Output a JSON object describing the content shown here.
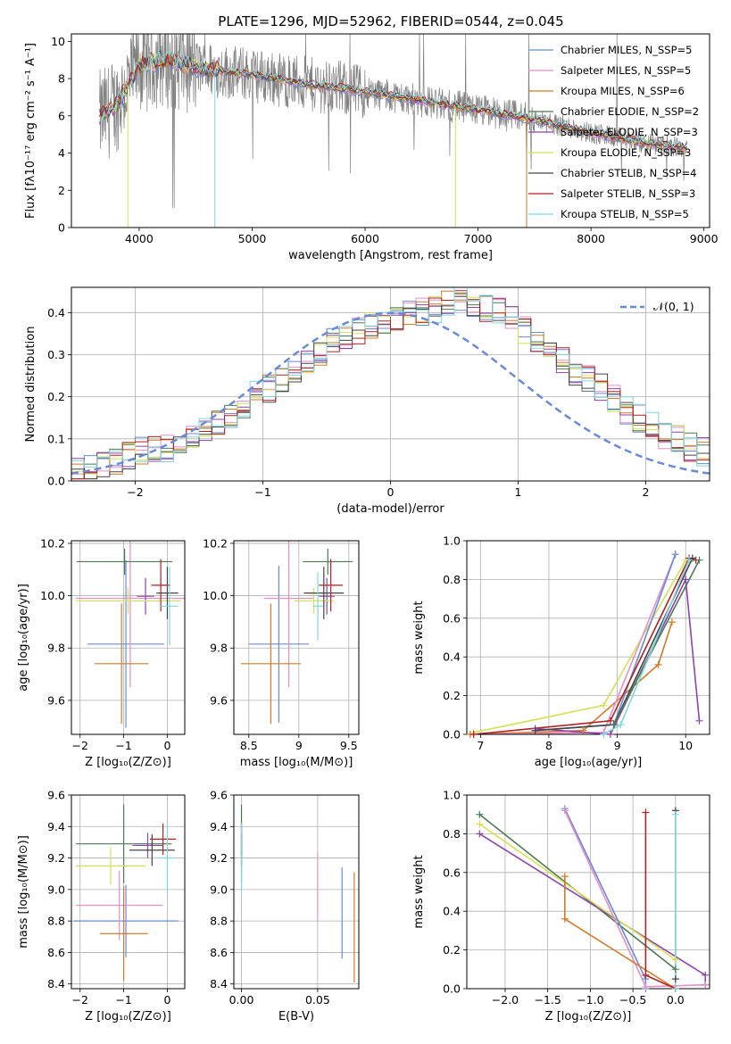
{
  "figure_title": "PLATE=1296, MJD=52962, FIBERID=0544, z=0.045",
  "chart_data": [
    {
      "id": "spectrum",
      "type": "line",
      "xlabel": "wavelength [Angstrom, rest frame]",
      "ylabel": "Flux [fλ10⁻¹⁷ erg cm⁻² s⁻¹ A⁻¹]",
      "xlim": [
        3400,
        9050
      ],
      "ylim": [
        0,
        10.4
      ],
      "xticks": [
        4000,
        5000,
        6000,
        7000,
        8000,
        9000
      ],
      "yticks": [
        0,
        2,
        4,
        6,
        8,
        10
      ],
      "grid": false,
      "legend_position": "top-right",
      "data_color": "#808080",
      "continuum": {
        "x": [
          3650,
          3800,
          4000,
          4200,
          4500,
          5000,
          5500,
          6000,
          6500,
          7000,
          7500,
          8000,
          8500,
          8850
        ],
        "y": [
          5.9,
          6.6,
          8.7,
          9.0,
          8.6,
          8.2,
          7.7,
          7.3,
          6.8,
          6.3,
          5.8,
          5.1,
          4.5,
          4.3
        ]
      },
      "series": [
        {
          "name": "Chabrier MILES, N_SSP=5",
          "color": "#6a8ad8"
        },
        {
          "name": "Salpeter MILES, N_SSP=5",
          "color": "#e48fc8"
        },
        {
          "name": "Kroupa MILES, N_SSP=6",
          "color": "#d57a2a"
        },
        {
          "name": "Chabrier ELODIE, N_SSP=2",
          "color": "#4b7a55"
        },
        {
          "name": "Salpeter ELODIE, N_SSP=3",
          "color": "#8e44ad"
        },
        {
          "name": "Kroupa ELODIE, N_SSP=3",
          "color": "#d4e157"
        },
        {
          "name": "Chabrier STELIB, N_SSP=4",
          "color": "#444444"
        },
        {
          "name": "Salpeter STELIB, N_SSP=3",
          "color": "#b22222"
        },
        {
          "name": "Kroupa STELIB, N_SSP=5",
          "color": "#7fd8e0"
        }
      ]
    },
    {
      "id": "residuals",
      "type": "bar",
      "xlabel": "(data-model)/error",
      "ylabel": "Normed distribution",
      "xlim": [
        -2.5,
        2.5
      ],
      "ylim": [
        0,
        0.46
      ],
      "xticks": [
        -2,
        -1,
        0,
        1,
        2
      ],
      "yticks": [
        0.0,
        0.1,
        0.2,
        0.3,
        0.4
      ],
      "grid": true,
      "legend": "𝒩(0, 1)",
      "legend_position": "top-right",
      "normal_color": "#6a8ad8",
      "bin_edges_start": -2.5,
      "bin_width": 0.1,
      "base_histogram": [
        0.02,
        0.03,
        0.04,
        0.05,
        0.06,
        0.07,
        0.08,
        0.08,
        0.09,
        0.11,
        0.12,
        0.14,
        0.16,
        0.18,
        0.21,
        0.22,
        0.24,
        0.26,
        0.28,
        0.3,
        0.33,
        0.34,
        0.36,
        0.37,
        0.38,
        0.39,
        0.4,
        0.4,
        0.41,
        0.42,
        0.43,
        0.42,
        0.41,
        0.4,
        0.38,
        0.36,
        0.34,
        0.31,
        0.29,
        0.26,
        0.24,
        0.22,
        0.2,
        0.17,
        0.15,
        0.13,
        0.11,
        0.1,
        0.08,
        0.07
      ]
    },
    {
      "id": "age-vs-Z",
      "type": "scatter",
      "xlabel": "Z [log₁₀(Z/Z⊙)]",
      "ylabel": "age  [log₁₀(age/yr)]",
      "xlim": [
        -2.2,
        0.4
      ],
      "ylim": [
        9.47,
        10.21
      ],
      "xticks": [
        -2,
        -1,
        0
      ],
      "yticks": [
        9.6,
        9.8,
        10.0,
        10.2
      ],
      "grid": true,
      "points": [
        {
          "x": -0.95,
          "y": 9.815,
          "xerr": 0.88,
          "yerr": 0.32,
          "c": "#6a8ad8"
        },
        {
          "x": -0.85,
          "y": 9.99,
          "xerr": 1.25,
          "yerr": 0.34,
          "c": "#e48fc8"
        },
        {
          "x": -1.05,
          "y": 9.74,
          "xerr": 0.62,
          "yerr": 0.23,
          "c": "#d57a2a"
        },
        {
          "x": -0.98,
          "y": 10.13,
          "xerr": 1.1,
          "yerr": 0.05,
          "c": "#4b7a55"
        },
        {
          "x": -0.5,
          "y": 9.998,
          "xerr": 0.2,
          "yerr": 0.07,
          "c": "#8e44ad"
        },
        {
          "x": -0.9,
          "y": 9.98,
          "xerr": 1.2,
          "yerr": 0.05,
          "c": "#d4e157"
        },
        {
          "x": 0.0,
          "y": 10.01,
          "xerr": 0.25,
          "yerr": 0.1,
          "c": "#444444"
        },
        {
          "x": -0.15,
          "y": 10.04,
          "xerr": 0.22,
          "yerr": 0.1,
          "c": "#b22222"
        },
        {
          "x": 0.05,
          "y": 9.96,
          "xerr": 0.2,
          "yerr": 0.15,
          "c": "#7fd8e0"
        }
      ]
    },
    {
      "id": "age-vs-mass",
      "type": "scatter",
      "xlabel": "mass [log₁₀(M/M⊙)]",
      "ylabel": "",
      "xlim": [
        8.35,
        9.6
      ],
      "ylim": [
        9.47,
        10.21
      ],
      "xticks": [
        8.5,
        9.0,
        9.5
      ],
      "yticks": [
        9.6,
        9.8,
        10.0,
        10.2
      ],
      "grid": true,
      "points": [
        {
          "x": 8.8,
          "y": 9.815,
          "xerr": 0.3,
          "yerr": 0.3,
          "c": "#6a8ad8"
        },
        {
          "x": 8.9,
          "y": 9.99,
          "xerr": 0.25,
          "yerr": 0.34,
          "c": "#e48fc8"
        },
        {
          "x": 8.72,
          "y": 9.74,
          "xerr": 0.3,
          "yerr": 0.23,
          "c": "#d57a2a"
        },
        {
          "x": 9.29,
          "y": 10.13,
          "xerr": 0.25,
          "yerr": 0.05,
          "c": "#4b7a55"
        },
        {
          "x": 9.28,
          "y": 9.998,
          "xerr": 0.08,
          "yerr": 0.07,
          "c": "#8e44ad"
        },
        {
          "x": 9.15,
          "y": 9.98,
          "xerr": 0.2,
          "yerr": 0.05,
          "c": "#d4e157"
        },
        {
          "x": 9.25,
          "y": 10.01,
          "xerr": 0.2,
          "yerr": 0.1,
          "c": "#444444"
        },
        {
          "x": 9.32,
          "y": 10.04,
          "xerr": 0.12,
          "yerr": 0.1,
          "c": "#b22222"
        },
        {
          "x": 9.19,
          "y": 9.96,
          "xerr": 0.05,
          "yerr": 0.13,
          "c": "#7fd8e0"
        }
      ]
    },
    {
      "id": "mass-weight-vs-age",
      "type": "line",
      "xlabel": "age  [log₁₀(age/yr)]",
      "ylabel": "mass weight",
      "xlim": [
        6.8,
        10.35
      ],
      "ylim": [
        0,
        1.0
      ],
      "xticks": [
        7,
        8,
        9,
        10
      ],
      "yticks": [
        0.0,
        0.2,
        0.4,
        0.6,
        0.8,
        1.0
      ],
      "grid": true,
      "series": [
        {
          "c": "#d4e157",
          "x": [
            6.9,
            8.8,
            10.0
          ],
          "y": [
            0.01,
            0.15,
            0.9
          ]
        },
        {
          "c": "#d57a2a",
          "x": [
            6.85,
            8.5,
            9.6,
            9.8
          ],
          "y": [
            0.0,
            0.02,
            0.36,
            0.58
          ]
        },
        {
          "c": "#e48fc8",
          "x": [
            6.9,
            8.8,
            9.85
          ],
          "y": [
            0.0,
            0.01,
            0.93
          ]
        },
        {
          "c": "#6a8ad8",
          "x": [
            7.8,
            8.95,
            9.85
          ],
          "y": [
            0.02,
            0.05,
            0.93
          ]
        },
        {
          "c": "#8e44ad",
          "x": [
            7.8,
            8.9,
            10.0,
            10.2
          ],
          "y": [
            0.03,
            0.0,
            0.8,
            0.07
          ]
        },
        {
          "c": "#b22222",
          "x": [
            6.9,
            8.9,
            10.05,
            10.15
          ],
          "y": [
            0.0,
            0.07,
            0.91,
            0.9
          ]
        },
        {
          "c": "#444444",
          "x": [
            7.8,
            8.95,
            10.1
          ],
          "y": [
            0.02,
            0.05,
            0.91
          ]
        },
        {
          "c": "#4b7a55",
          "x": [
            8.95,
            10.2
          ],
          "y": [
            0.05,
            0.9
          ]
        },
        {
          "c": "#7fd8e0",
          "x": [
            8.8,
            9.05,
            10.05
          ],
          "y": [
            0.0,
            0.05,
            0.9
          ]
        }
      ]
    },
    {
      "id": "mass-vs-Z",
      "type": "scatter",
      "xlabel": "Z [log₁₀(Z/Z⊙)]",
      "ylabel": "mass [log₁₀(M/M⊙)]",
      "xlim": [
        -2.2,
        0.4
      ],
      "ylim": [
        8.37,
        9.6
      ],
      "xticks": [
        -2,
        -1,
        0
      ],
      "yticks": [
        8.4,
        8.6,
        8.8,
        9.0,
        9.2,
        9.4,
        9.6
      ],
      "grid": true,
      "points": [
        {
          "x": -0.95,
          "y": 8.8,
          "xerr": 1.2,
          "yerr": 0.23,
          "c": "#6a8ad8"
        },
        {
          "x": -1.1,
          "y": 8.9,
          "xerr": 1.0,
          "yerr": 0.22,
          "c": "#e48fc8"
        },
        {
          "x": -1.0,
          "y": 8.72,
          "xerr": 0.55,
          "yerr": 0.3,
          "c": "#d57a2a"
        },
        {
          "x": -1.0,
          "y": 9.29,
          "xerr": 1.1,
          "yerr": 0.25,
          "c": "#4b7a55"
        },
        {
          "x": -0.45,
          "y": 9.28,
          "xerr": 0.35,
          "yerr": 0.08,
          "c": "#8e44ad"
        },
        {
          "x": -1.3,
          "y": 9.15,
          "xerr": 0.8,
          "yerr": 0.12,
          "c": "#d4e157"
        },
        {
          "x": -0.35,
          "y": 9.25,
          "xerr": 0.52,
          "yerr": 0.1,
          "c": "#444444"
        },
        {
          "x": -0.1,
          "y": 9.32,
          "xerr": 0.3,
          "yerr": 0.1,
          "c": "#b22222"
        },
        {
          "x": 0.0,
          "y": 9.2,
          "xerr": 0.2,
          "yerr": 0.22,
          "c": "#7fd8e0"
        }
      ]
    },
    {
      "id": "mass-vs-EBV",
      "type": "scatter",
      "xlabel": "E(B-V)",
      "ylabel": "",
      "xlim": [
        -0.005,
        0.077
      ],
      "ylim": [
        8.37,
        9.6
      ],
      "xticks": [
        0.0,
        0.05
      ],
      "xticklabels": [
        "0.00",
        "0.05"
      ],
      "yticks": [
        8.4,
        8.6,
        8.8,
        9.0,
        9.2,
        9.4,
        9.6
      ],
      "grid": true,
      "points": [
        {
          "x": 0.066,
          "y": 8.85,
          "xerr": 0,
          "yerr": 0.29,
          "c": "#6a8ad8"
        },
        {
          "x": 0.05,
          "y": 9.02,
          "xerr": 0,
          "yerr": 0.22,
          "c": "#e48fc8"
        },
        {
          "x": 0.074,
          "y": 8.76,
          "xerr": 0,
          "yerr": 0.35,
          "c": "#d57a2a"
        },
        {
          "x": 0.0,
          "y": 9.29,
          "xerr": 0,
          "yerr": 0.25,
          "c": "#4b7a55"
        },
        {
          "x": 0.0,
          "y": 9.28,
          "xerr": 0,
          "yerr": 0.08,
          "c": "#8e44ad"
        },
        {
          "x": 0.0,
          "y": 9.15,
          "xerr": 0,
          "yerr": 0.15,
          "c": "#d4e157"
        },
        {
          "x": 0.0,
          "y": 9.25,
          "xerr": 0,
          "yerr": 0.1,
          "c": "#444444"
        },
        {
          "x": 0.0,
          "y": 9.32,
          "xerr": 0,
          "yerr": 0.1,
          "c": "#b22222"
        },
        {
          "x": 0.0,
          "y": 9.2,
          "xerr": 0,
          "yerr": 0.22,
          "c": "#7fd8e0"
        }
      ]
    },
    {
      "id": "mass-weight-vs-Z",
      "type": "line",
      "xlabel": "Z [log₁₀(Z/Z⊙)]",
      "ylabel": "mass weight",
      "xlim": [
        -2.45,
        0.4
      ],
      "ylim": [
        0,
        1.0
      ],
      "xticks": [
        -2.0,
        -1.5,
        -1.0,
        -0.5,
        0.0
      ],
      "xticklabels": [
        "−2.0",
        "−1.5",
        "−1.0",
        "−0.5",
        "0.0"
      ],
      "yticks": [
        0.0,
        0.2,
        0.4,
        0.6,
        0.8,
        1.0
      ],
      "grid": true,
      "series": [
        {
          "c": "#4b7a55",
          "x": [
            -2.3,
            0.0
          ],
          "y": [
            0.9,
            0.1
          ]
        },
        {
          "c": "#8e44ad",
          "x": [
            -2.3,
            0.35,
            0.35
          ],
          "y": [
            0.8,
            0.07,
            0.02
          ]
        },
        {
          "c": "#d4e157",
          "x": [
            -2.3,
            0.0
          ],
          "y": [
            0.85,
            0.15
          ]
        },
        {
          "c": "#6a8ad8",
          "x": [
            -1.3,
            -0.35,
            -0.35
          ],
          "y": [
            0.93,
            0.05,
            0.0
          ]
        },
        {
          "c": "#e48fc8",
          "x": [
            -1.3,
            -0.35,
            0.35
          ],
          "y": [
            0.92,
            0.01,
            0.02
          ]
        },
        {
          "c": "#d57a2a",
          "x": [
            -1.3,
            -1.3,
            0.0
          ],
          "y": [
            0.58,
            0.36,
            0.0
          ]
        },
        {
          "c": "#b22222",
          "x": [
            -0.35,
            -0.35,
            0.0
          ],
          "y": [
            0.91,
            0.07,
            0.0
          ]
        },
        {
          "c": "#444444",
          "x": [
            0.0,
            0.0
          ],
          "y": [
            0.92,
            0.05
          ]
        },
        {
          "c": "#7fd8e0",
          "x": [
            0.0,
            0.0
          ],
          "y": [
            0.9,
            0.0
          ]
        }
      ]
    }
  ]
}
